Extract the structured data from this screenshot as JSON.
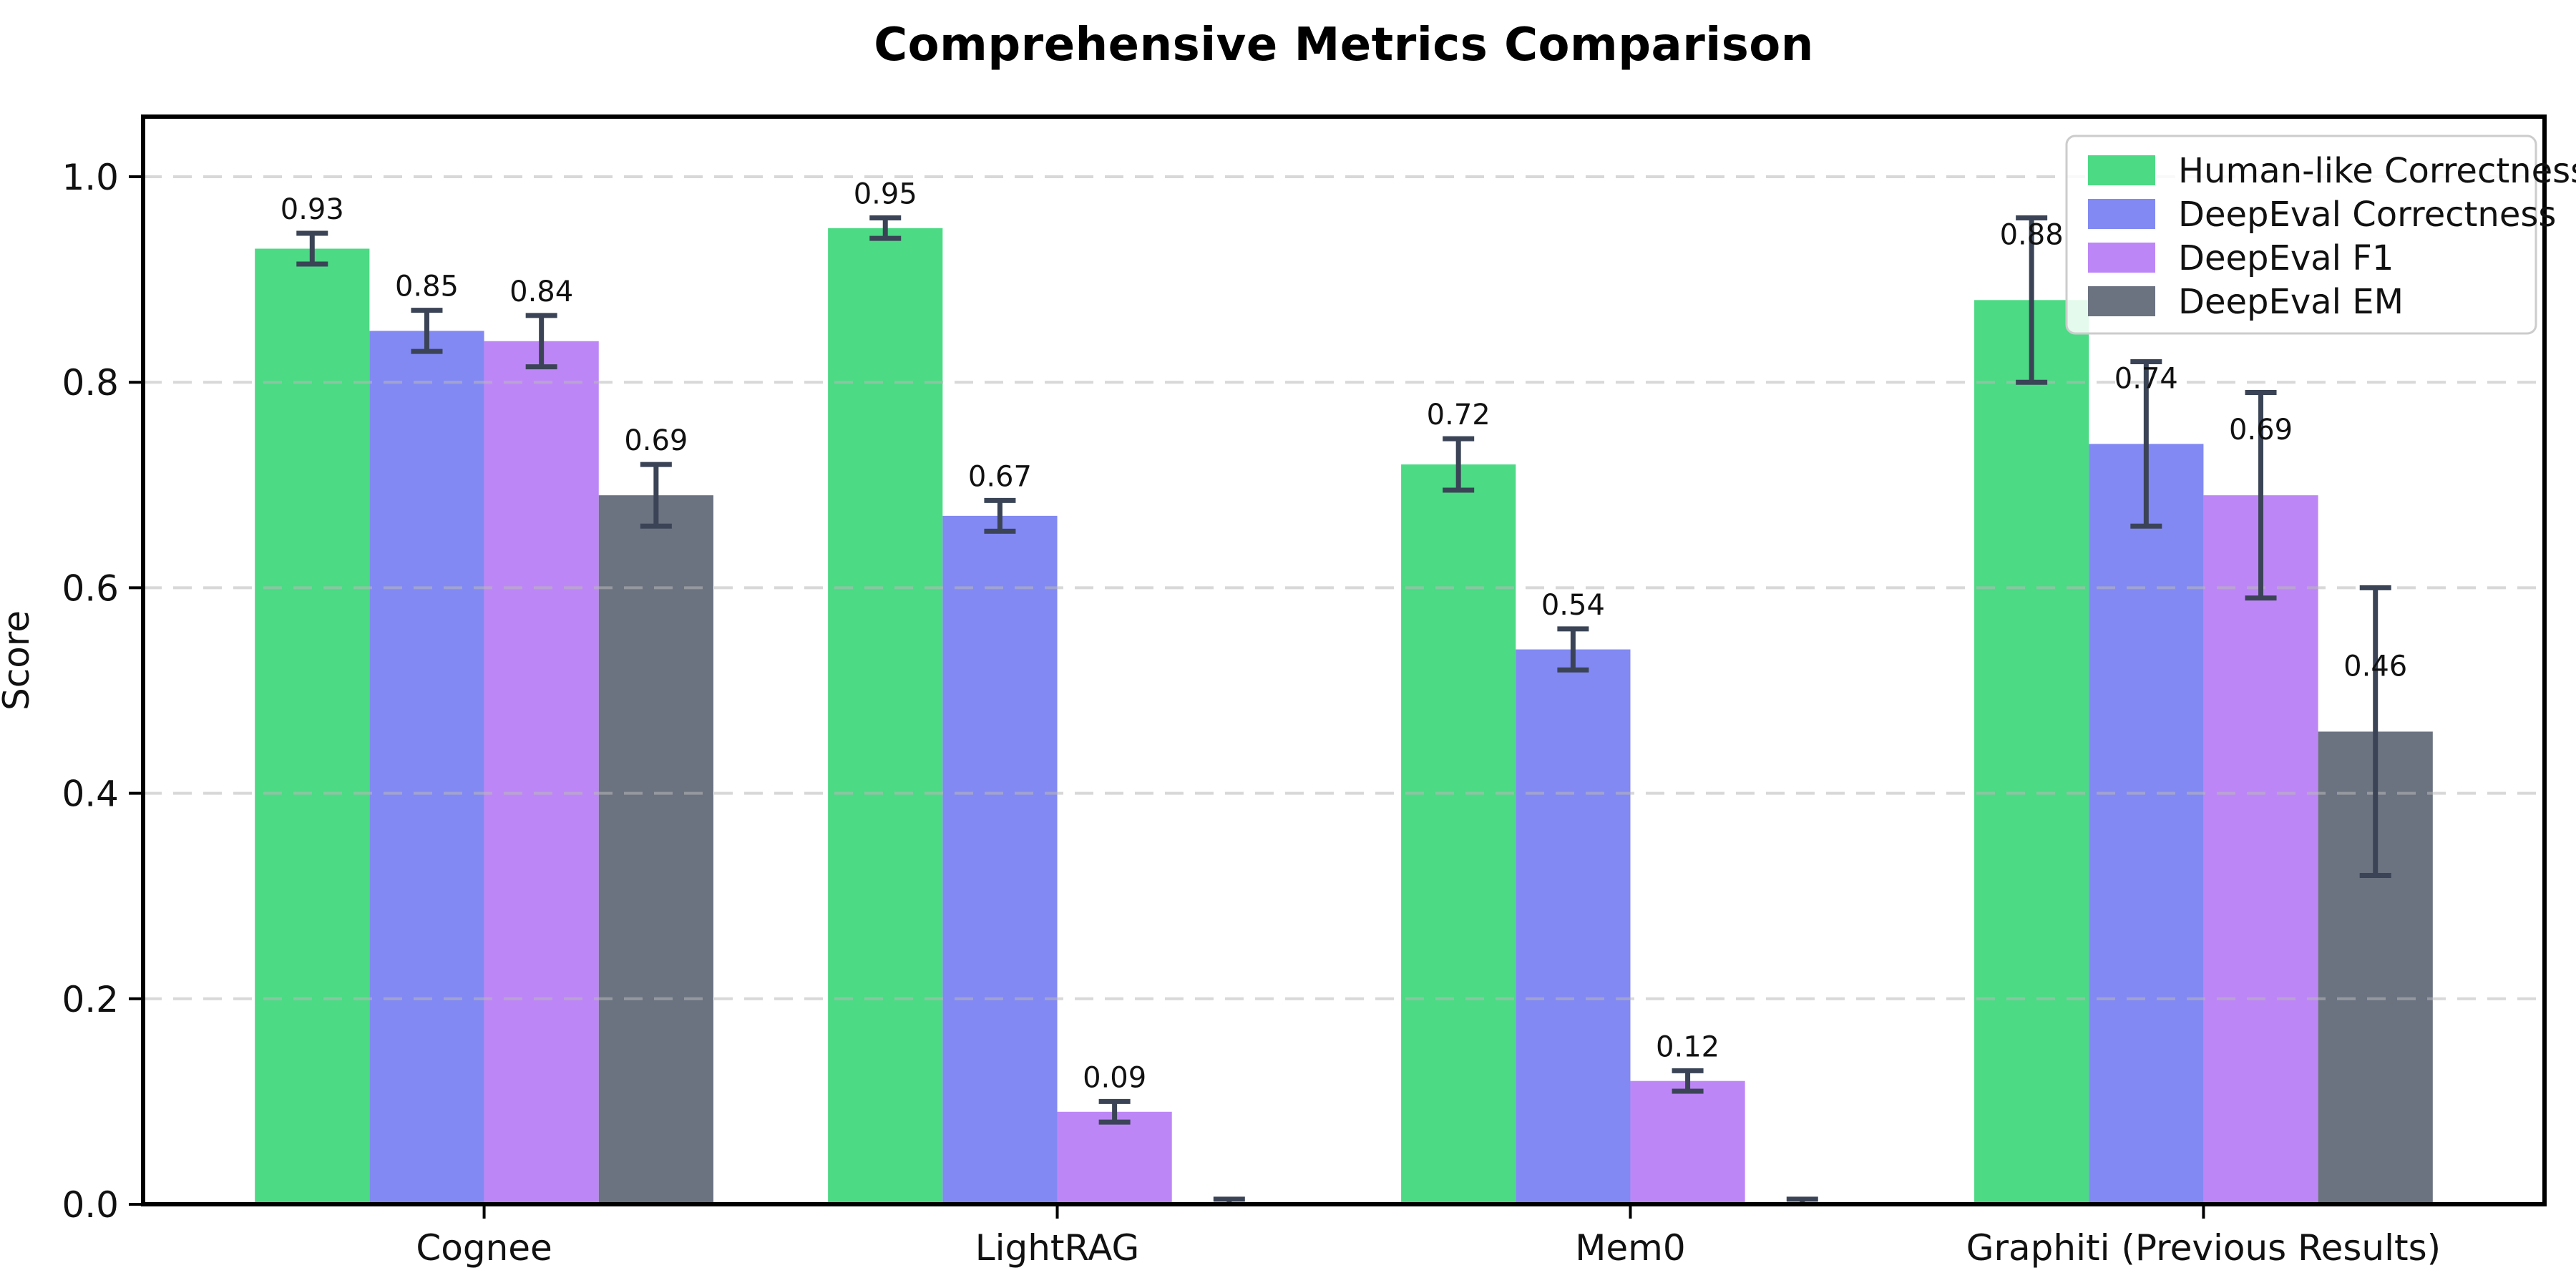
{
  "chart_data": {
    "type": "bar",
    "title": "Comprehensive Metrics Comparison",
    "xlabel": "",
    "ylabel": "Score",
    "categories": [
      "Cognee",
      "LightRAG",
      "Mem0",
      "Graphiti (Previous Results)"
    ],
    "y_ticks": [
      "0.0",
      "0.2",
      "0.4",
      "0.6",
      "0.8",
      "1.0"
    ],
    "ylim": [
      0.0,
      1.05
    ],
    "grid": "horizontal dashed",
    "legend_position": "upper right",
    "error_bars": true,
    "series": [
      {
        "name": "Human-like Correctness",
        "color": "#4cda84",
        "values": [
          0.93,
          0.95,
          0.72,
          0.88
        ],
        "errors": [
          0.015,
          0.01,
          0.025,
          0.08
        ],
        "labels": [
          "0.93",
          "0.95",
          "0.72",
          "0.88"
        ]
      },
      {
        "name": "DeepEval Correctness",
        "color": "#8289f2",
        "values": [
          0.85,
          0.67,
          0.54,
          0.74
        ],
        "errors": [
          0.02,
          0.015,
          0.02,
          0.08
        ],
        "labels": [
          "0.85",
          "0.67",
          "0.54",
          "0.74"
        ]
      },
      {
        "name": "DeepEval F1",
        "color": "#bd86f6",
        "values": [
          0.84,
          0.09,
          0.12,
          0.69
        ],
        "errors": [
          0.025,
          0.01,
          0.01,
          0.1
        ],
        "labels": [
          "0.84",
          "0.09",
          "0.12",
          "0.69"
        ]
      },
      {
        "name": "DeepEval EM",
        "color": "#6b7280",
        "values": [
          0.69,
          0.0,
          0.0,
          0.46
        ],
        "errors": [
          0.03,
          0.005,
          0.005,
          0.14
        ],
        "labels": [
          "0.69",
          null,
          null,
          "0.46"
        ]
      }
    ],
    "colors": {
      "errorbar": "#3a4456",
      "gridline": "#b9b9b9",
      "axis": "#000000",
      "text": "#111111",
      "background": "#ffffff",
      "legend_border": "#cccccc"
    }
  }
}
